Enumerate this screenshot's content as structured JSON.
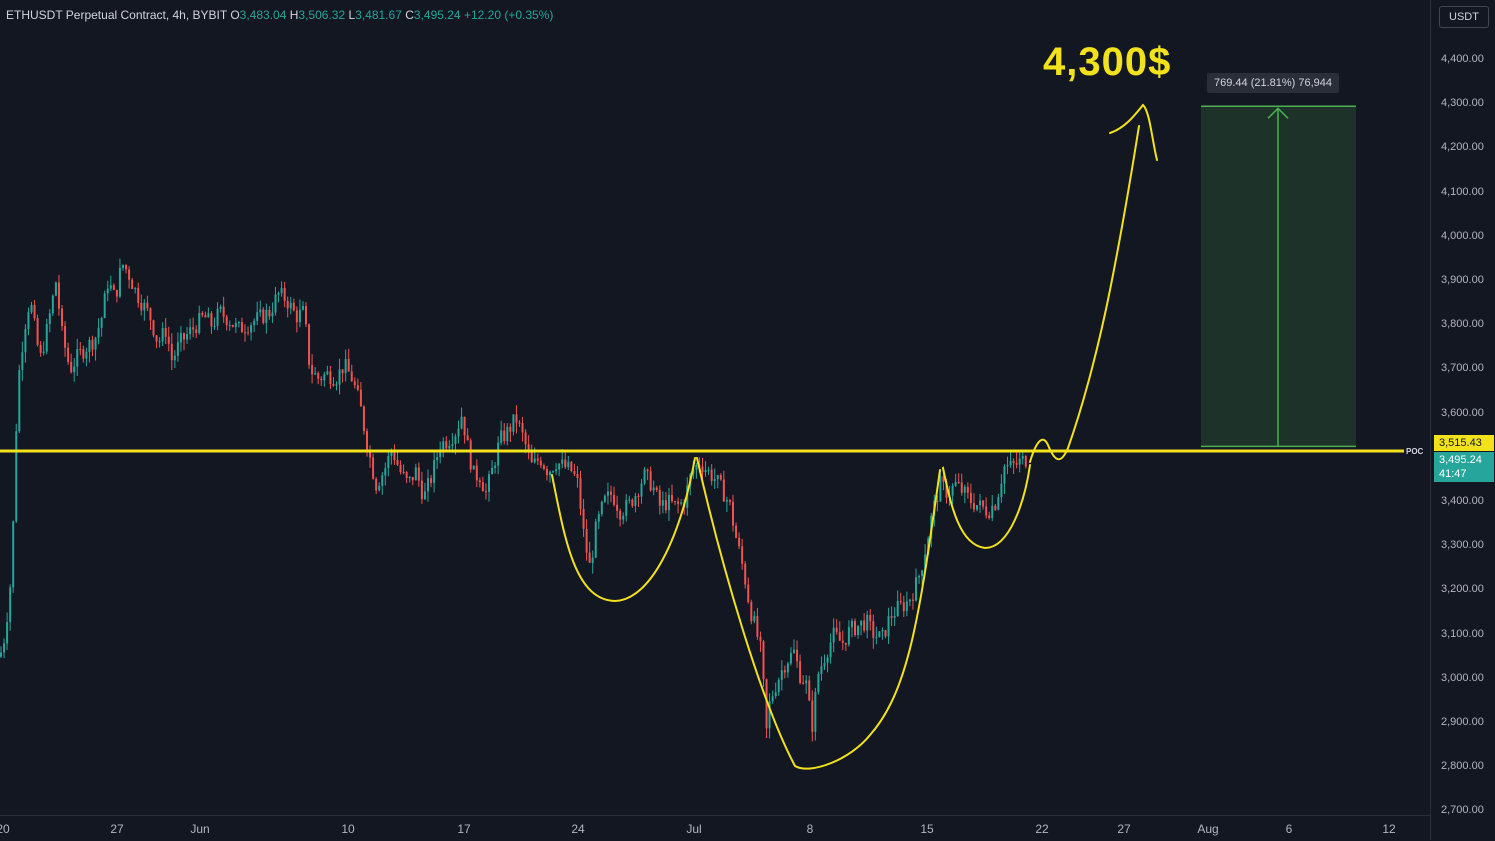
{
  "header": {
    "symbol": "ETHUSDT Perpetual Contract, 4h, BYBIT",
    "open_label": "O",
    "open": "3,483.04",
    "high_label": "H",
    "high": "3,506.32",
    "low_label": "L",
    "low": "3,481.67",
    "close_label": "C",
    "close": "3,495.24",
    "change": "+12.20 (+0.35%)"
  },
  "currency_button": "USDT",
  "colors": {
    "up": "#26a69a",
    "down": "#ef5350",
    "annotation": "#f2e21b",
    "target_box": "#4caf50"
  },
  "chart_data": {
    "type": "candlestick",
    "title": "",
    "y_axis": {
      "ticks": [
        "4,400.00",
        "4,300.00",
        "4,200.00",
        "4,100.00",
        "4,000.00",
        "3,900.00",
        "3,800.00",
        "3,700.00",
        "3,600.00",
        "3,500.00",
        "3,400.00",
        "3,300.00",
        "3,200.00",
        "3,100.00",
        "3,000.00",
        "2,900.00",
        "2,800.00",
        "2,700.00"
      ],
      "tick_values": [
        4400,
        4300,
        4200,
        4100,
        4000,
        3900,
        3800,
        3700,
        3600,
        3500,
        3400,
        3300,
        3200,
        3100,
        3000,
        2900,
        2800,
        2700
      ],
      "range": [
        2690,
        4495
      ]
    },
    "x_axis": {
      "ticks": [
        "20",
        "27",
        "Jun",
        "10",
        "17",
        "24",
        "Jul",
        "8",
        "15",
        "22",
        "27",
        "Aug",
        "6",
        "12"
      ]
    },
    "price_path": [
      [
        0,
        3050
      ],
      [
        5,
        3100
      ],
      [
        12,
        3250
      ],
      [
        15,
        3500
      ],
      [
        18,
        3670
      ],
      [
        24,
        3790
      ],
      [
        30,
        3860
      ],
      [
        40,
        3720
      ],
      [
        48,
        3800
      ],
      [
        56,
        3900
      ],
      [
        62,
        3780
      ],
      [
        70,
        3700
      ],
      [
        78,
        3730
      ],
      [
        86,
        3750
      ],
      [
        95,
        3770
      ],
      [
        102,
        3820
      ],
      [
        108,
        3900
      ],
      [
        115,
        3860
      ],
      [
        122,
        3940
      ],
      [
        128,
        3920
      ],
      [
        135,
        3880
      ],
      [
        142,
        3850
      ],
      [
        150,
        3820
      ],
      [
        158,
        3760
      ],
      [
        166,
        3790
      ],
      [
        172,
        3720
      ],
      [
        180,
        3760
      ],
      [
        188,
        3780
      ],
      [
        196,
        3800
      ],
      [
        204,
        3820
      ],
      [
        212,
        3800
      ],
      [
        220,
        3830
      ],
      [
        230,
        3810
      ],
      [
        238,
        3790
      ],
      [
        246,
        3800
      ],
      [
        254,
        3810
      ],
      [
        262,
        3820
      ],
      [
        270,
        3830
      ],
      [
        278,
        3870
      ],
      [
        286,
        3860
      ],
      [
        296,
        3820
      ],
      [
        304,
        3830
      ],
      [
        310,
        3700
      ],
      [
        318,
        3680
      ],
      [
        328,
        3690
      ],
      [
        336,
        3680
      ],
      [
        344,
        3710
      ],
      [
        352,
        3680
      ],
      [
        360,
        3620
      ],
      [
        368,
        3520
      ],
      [
        376,
        3440
      ],
      [
        384,
        3470
      ],
      [
        392,
        3520
      ],
      [
        400,
        3470
      ],
      [
        408,
        3440
      ],
      [
        416,
        3470
      ],
      [
        424,
        3410
      ],
      [
        432,
        3460
      ],
      [
        440,
        3530
      ],
      [
        448,
        3540
      ],
      [
        456,
        3560
      ],
      [
        462,
        3600
      ],
      [
        468,
        3520
      ],
      [
        474,
        3460
      ],
      [
        480,
        3460
      ],
      [
        486,
        3420
      ],
      [
        492,
        3470
      ],
      [
        500,
        3540
      ],
      [
        508,
        3560
      ],
      [
        516,
        3590
      ],
      [
        524,
        3540
      ],
      [
        532,
        3480
      ],
      [
        540,
        3500
      ],
      [
        548,
        3470
      ],
      [
        556,
        3490
      ],
      [
        564,
        3480
      ],
      [
        572,
        3470
      ],
      [
        578,
        3440
      ],
      [
        584,
        3320
      ],
      [
        590,
        3250
      ],
      [
        596,
        3340
      ],
      [
        604,
        3400
      ],
      [
        612,
        3420
      ],
      [
        620,
        3380
      ],
      [
        628,
        3390
      ],
      [
        636,
        3420
      ],
      [
        644,
        3460
      ],
      [
        652,
        3440
      ],
      [
        660,
        3390
      ],
      [
        668,
        3400
      ],
      [
        676,
        3390
      ],
      [
        684,
        3400
      ],
      [
        692,
        3470
      ],
      [
        700,
        3490
      ],
      [
        708,
        3470
      ],
      [
        716,
        3450
      ],
      [
        724,
        3420
      ],
      [
        730,
        3390
      ],
      [
        736,
        3320
      ],
      [
        744,
        3240
      ],
      [
        750,
        3160
      ],
      [
        756,
        3110
      ],
      [
        762,
        3050
      ],
      [
        766,
        2870
      ],
      [
        770,
        2950
      ],
      [
        778,
        3000
      ],
      [
        786,
        3040
      ],
      [
        794,
        3060
      ],
      [
        800,
        3010
      ],
      [
        806,
        2990
      ],
      [
        812,
        2890
      ],
      [
        818,
        3010
      ],
      [
        826,
        3060
      ],
      [
        834,
        3100
      ],
      [
        842,
        3080
      ],
      [
        850,
        3110
      ],
      [
        858,
        3120
      ],
      [
        866,
        3130
      ],
      [
        874,
        3100
      ],
      [
        882,
        3090
      ],
      [
        890,
        3140
      ],
      [
        898,
        3160
      ],
      [
        906,
        3170
      ],
      [
        914,
        3200
      ],
      [
        920,
        3240
      ],
      [
        926,
        3300
      ],
      [
        932,
        3370
      ],
      [
        940,
        3440
      ],
      [
        948,
        3420
      ],
      [
        956,
        3440
      ],
      [
        964,
        3420
      ],
      [
        972,
        3400
      ],
      [
        980,
        3390
      ],
      [
        988,
        3380
      ],
      [
        996,
        3400
      ],
      [
        1004,
        3480
      ],
      [
        1012,
        3480
      ],
      [
        1020,
        3490
      ],
      [
        1028,
        3500
      ]
    ],
    "candle_width_units": 1,
    "horizontal_line": {
      "price": 3515.43,
      "label": "POC",
      "price_label": "3,515.43"
    },
    "last_price": {
      "price": 3495.24,
      "label": "3,495.24",
      "countdown": "41:47"
    },
    "measure": {
      "from": 3525.8,
      "to": 4295.24,
      "label": "769.44 (21.81%) 76,944"
    },
    "annotation_text": "4,300$"
  }
}
